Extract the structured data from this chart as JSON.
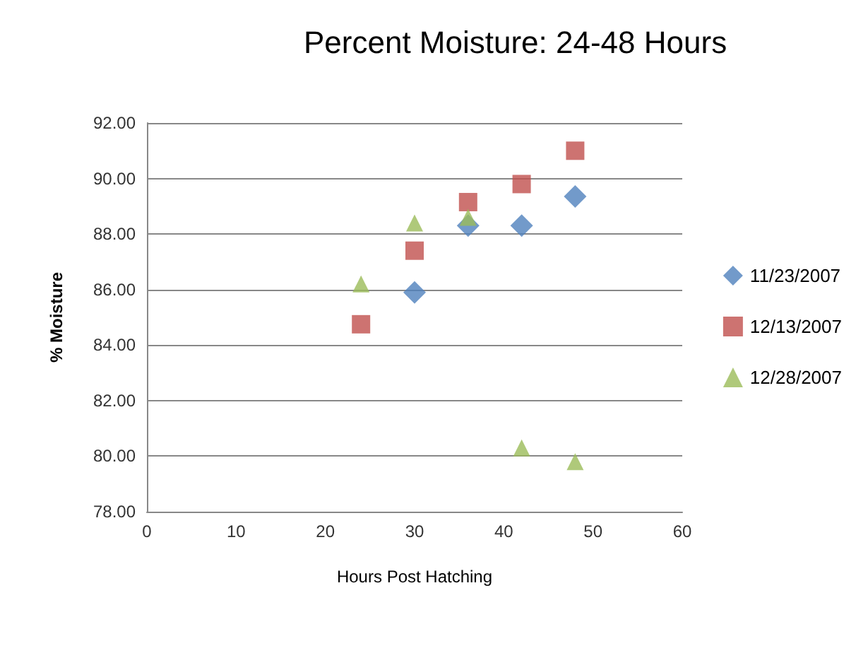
{
  "chart_data": {
    "type": "scatter",
    "title": "Percent Moisture: 24-48 Hours",
    "xlabel": "Hours Post Hatching",
    "ylabel": "% Moisture",
    "x": [
      24,
      30,
      36,
      42,
      48
    ],
    "series": [
      {
        "name": "11/23/2007",
        "color": "#4f81bd",
        "marker": "diamond",
        "values": [
          null,
          85.9,
          88.3,
          88.3,
          89.35
        ]
      },
      {
        "name": "12/13/2007",
        "color": "#c0504d",
        "marker": "square",
        "values": [
          84.75,
          87.4,
          89.15,
          89.8,
          91.0
        ]
      },
      {
        "name": "12/28/2007",
        "color": "#9bbb59",
        "marker": "triangle",
        "values": [
          86.2,
          88.4,
          88.6,
          80.3,
          79.8
        ]
      }
    ],
    "xlim": [
      0,
      60
    ],
    "xticks": [
      0,
      10,
      20,
      30,
      40,
      50,
      60
    ],
    "ylim": [
      78,
      92
    ],
    "yticks": [
      {
        "value": 78,
        "label": "78.00"
      },
      {
        "value": 80,
        "label": "80.00"
      },
      {
        "value": 82,
        "label": "82.00"
      },
      {
        "value": 84,
        "label": "84.00"
      },
      {
        "value": 86,
        "label": "86.00"
      },
      {
        "value": 88,
        "label": "88.00"
      },
      {
        "value": 90,
        "label": "90.00"
      },
      {
        "value": 92,
        "label": "92.00"
      }
    ],
    "grid": "y",
    "legend": "right"
  }
}
